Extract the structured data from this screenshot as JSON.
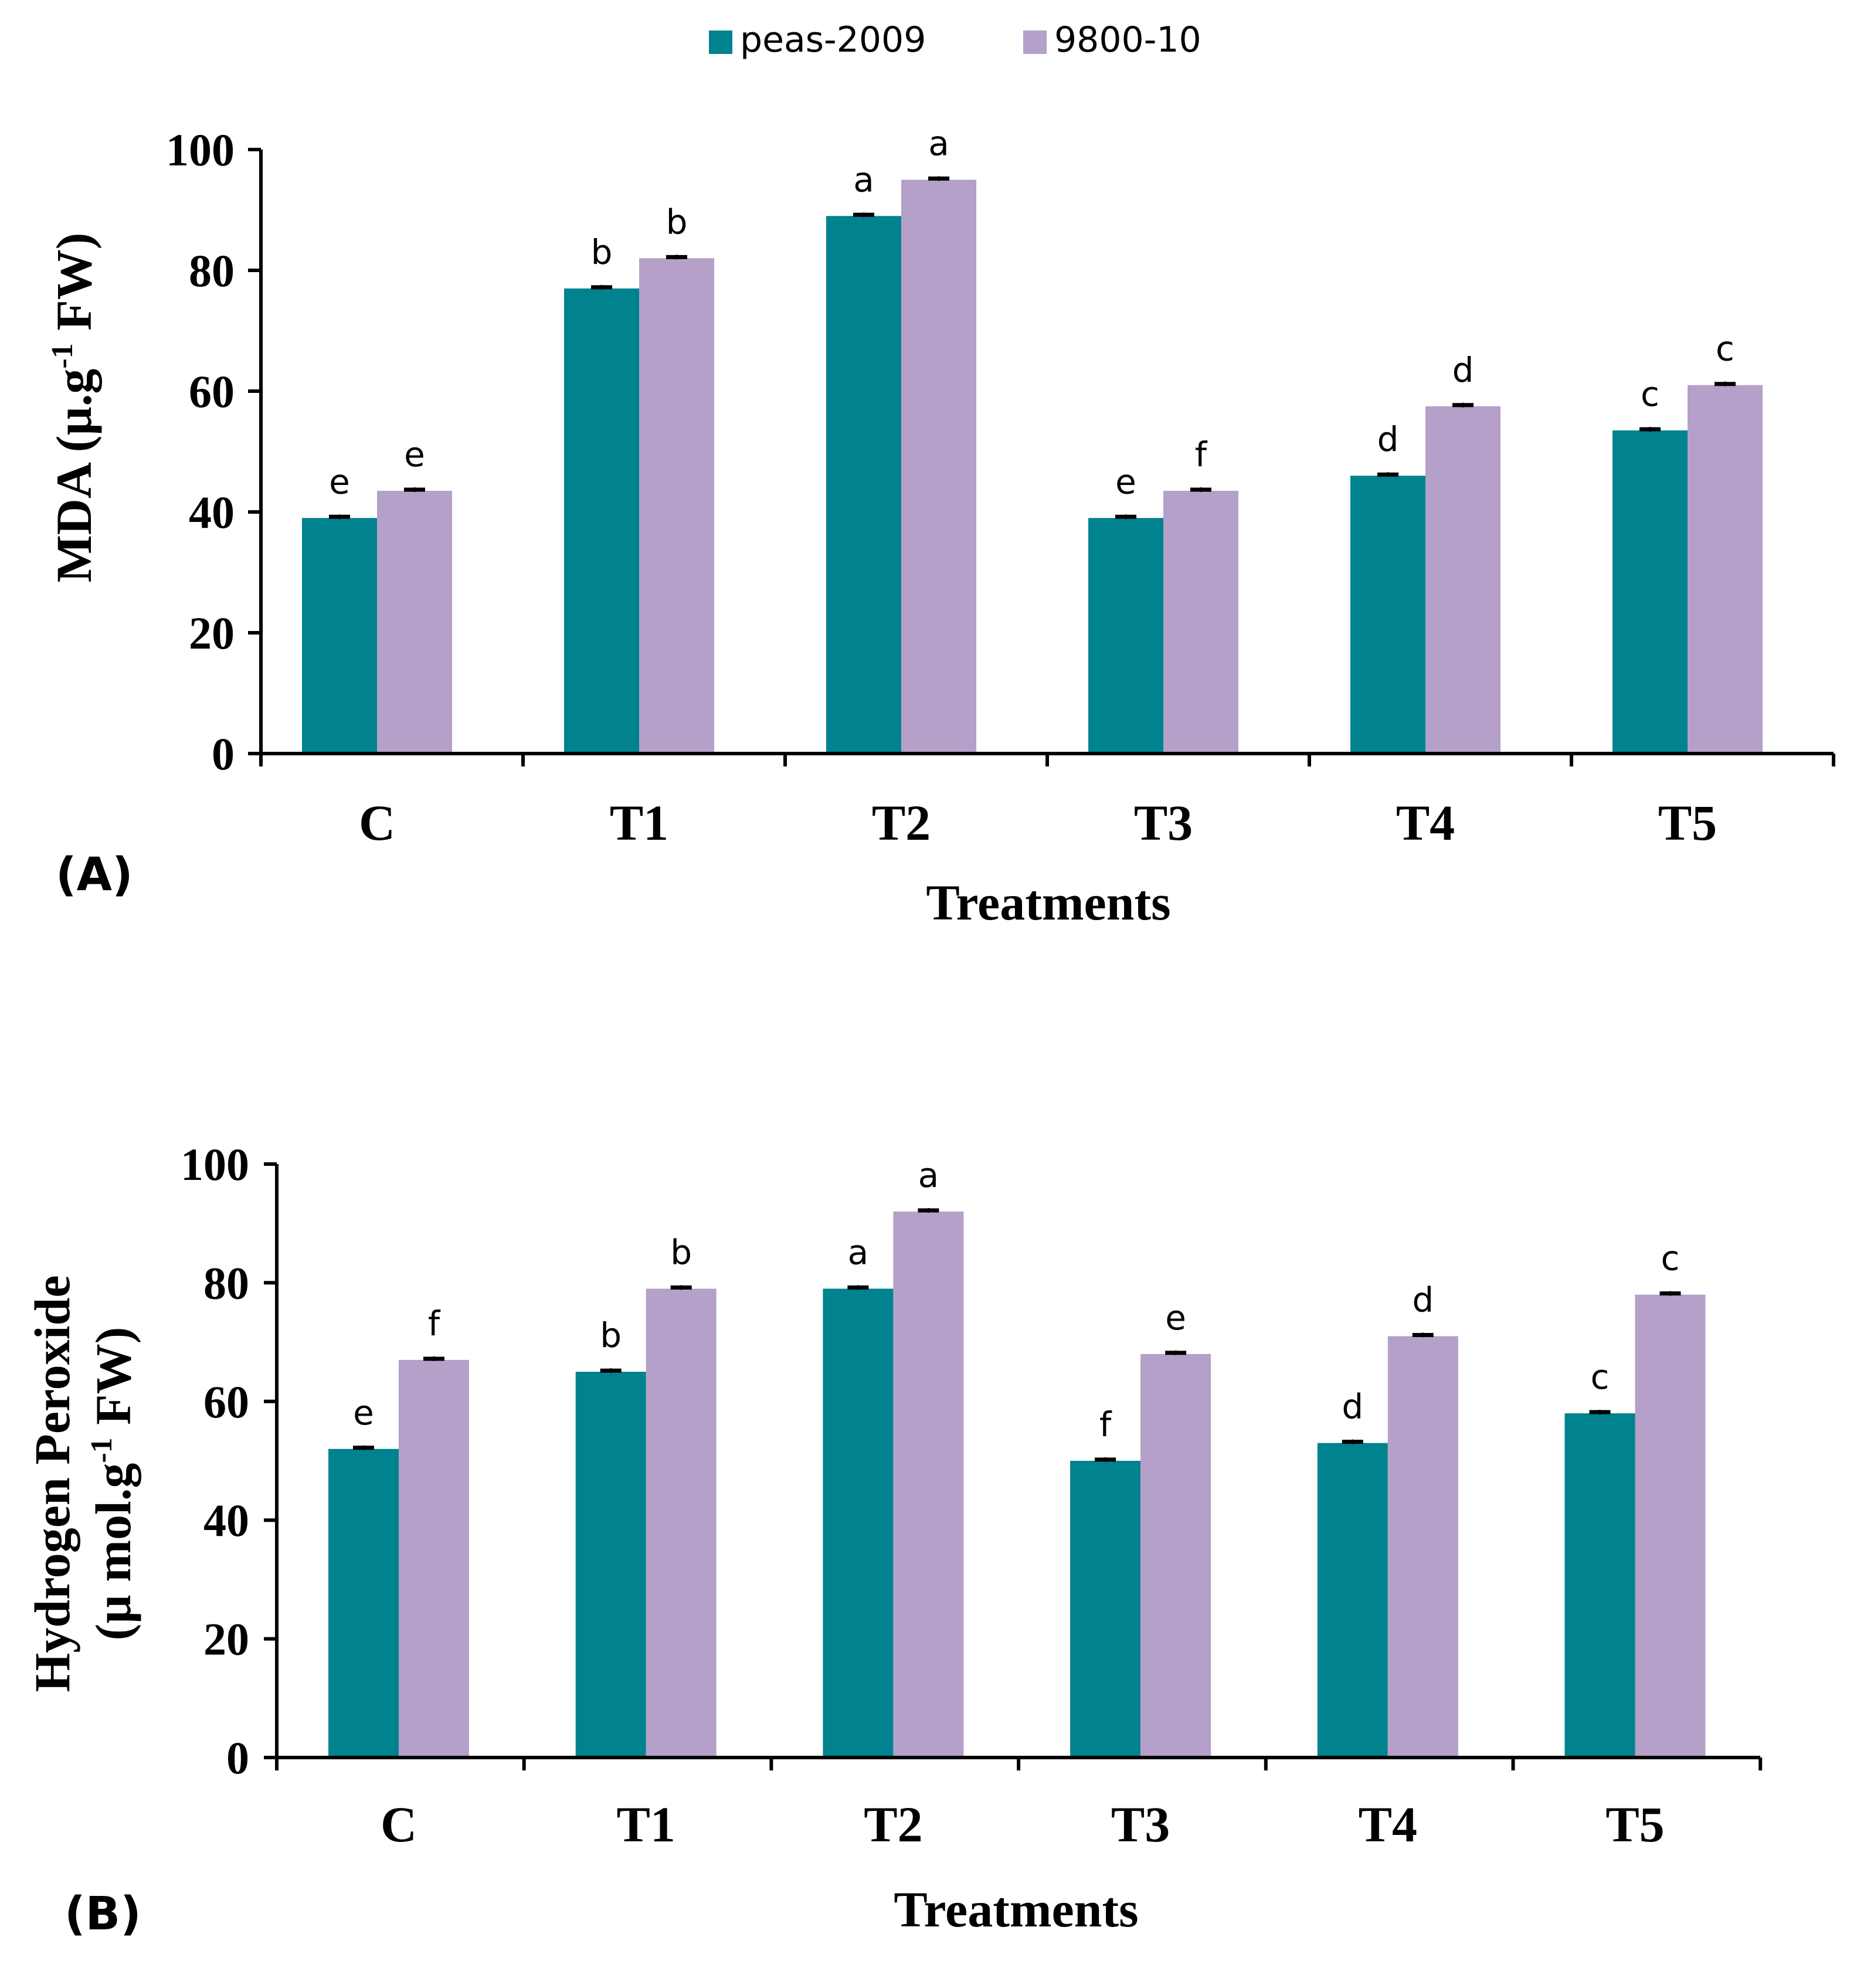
{
  "colors": {
    "series1": "#00828f",
    "series2": "#b5a0c9",
    "axis": "#000000",
    "error_bar": "#000000"
  },
  "legend": {
    "items": [
      {
        "label": "peas-2009"
      },
      {
        "label": "9800-10"
      }
    ]
  },
  "chart_data": [
    {
      "type": "bar",
      "panel": "(A)",
      "categories": [
        "C",
        "T1",
        "T2",
        "T3",
        "T4",
        "T5"
      ],
      "series": [
        {
          "name": "peas-2009",
          "values": [
            39,
            77,
            89,
            39,
            46,
            53.5
          ],
          "letters": [
            "e",
            "b",
            "a",
            "e",
            "d",
            "c"
          ]
        },
        {
          "name": "9800-10",
          "values": [
            43.5,
            82,
            95,
            43.5,
            57.5,
            61
          ],
          "letters": [
            "e",
            "b",
            "a",
            "f",
            "d",
            "c"
          ]
        }
      ],
      "ylabel": "MDA (µ.g-1 FW)",
      "ylabel_parts": {
        "pre": "MDA (µ.g",
        "sup": "-1",
        "post": " FW)"
      },
      "xlabel": "Treatments",
      "ylim": [
        0,
        100
      ],
      "yticks": [
        0,
        20,
        40,
        60,
        80,
        100
      ],
      "grid": false
    },
    {
      "type": "bar",
      "panel": "(B)",
      "categories": [
        "C",
        "T1",
        "T2",
        "T3",
        "T4",
        "T5"
      ],
      "series": [
        {
          "name": "peas-2009",
          "values": [
            52,
            65,
            79,
            50,
            53,
            58
          ],
          "letters": [
            "e",
            "b",
            "a",
            "f",
            "d",
            "c"
          ]
        },
        {
          "name": "9800-10",
          "values": [
            67,
            79,
            92,
            68,
            71,
            78
          ],
          "letters": [
            "f",
            "b",
            "a",
            "e",
            "d",
            "c"
          ]
        }
      ],
      "ylabel_line1": "Hydrogen Peroxide",
      "ylabel_line2_parts": {
        "pre": "(µ mol.g",
        "sup": "-1",
        "post": " FW)"
      },
      "xlabel": "Treatments",
      "ylim": [
        0,
        100
      ],
      "yticks": [
        0,
        20,
        40,
        60,
        80,
        100
      ],
      "grid": false
    }
  ]
}
